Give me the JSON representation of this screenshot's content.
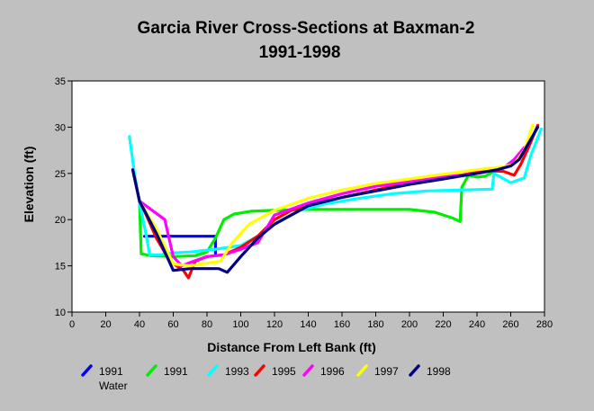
{
  "chart_data": {
    "type": "line",
    "title": "Garcia River Cross-Sections at Baxman-2",
    "subtitle": "1991-1998",
    "xlabel": "Distance From Left Bank (ft)",
    "ylabel": "Elevation (ft)",
    "xlim": [
      0,
      280
    ],
    "ylim": [
      10,
      35
    ],
    "xticks": [
      0,
      20,
      40,
      60,
      80,
      100,
      120,
      140,
      160,
      180,
      200,
      220,
      240,
      260,
      280
    ],
    "yticks": [
      10,
      15,
      20,
      25,
      30,
      35
    ],
    "grid": false,
    "legend_position": "bottom",
    "series": [
      {
        "name": "1991 Water",
        "color": "#0000ff",
        "points": [
          [
            43,
            18.2
          ],
          [
            85,
            18.2
          ],
          [
            85,
            16.3
          ]
        ]
      },
      {
        "name": "1991",
        "color": "#00ee00",
        "points": [
          [
            36,
            25.4
          ],
          [
            40,
            22
          ],
          [
            41,
            16.3
          ],
          [
            47,
            16.1
          ],
          [
            60,
            16
          ],
          [
            73,
            16.1
          ],
          [
            80,
            16.5
          ],
          [
            85,
            18
          ],
          [
            90,
            20
          ],
          [
            96,
            20.6
          ],
          [
            106,
            20.9
          ],
          [
            120,
            21
          ],
          [
            140,
            21.1
          ],
          [
            160,
            21.1
          ],
          [
            180,
            21.1
          ],
          [
            200,
            21.1
          ],
          [
            215,
            20.8
          ],
          [
            225,
            20.2
          ],
          [
            230,
            19.8
          ],
          [
            231,
            23.5
          ],
          [
            235,
            24.8
          ],
          [
            240,
            24.6
          ],
          [
            245,
            24.7
          ],
          [
            250,
            25.2
          ]
        ]
      },
      {
        "name": "1993",
        "color": "#00ffff",
        "points": [
          [
            34,
            29
          ],
          [
            37,
            25
          ],
          [
            40,
            21.8
          ],
          [
            44,
            18.3
          ],
          [
            46,
            16.2
          ],
          [
            52,
            16.2
          ],
          [
            60,
            16.4
          ],
          [
            70,
            16.5
          ],
          [
            85,
            16.8
          ],
          [
            100,
            17.2
          ],
          [
            110,
            18.2
          ],
          [
            120,
            19.5
          ],
          [
            135,
            21
          ],
          [
            150,
            21.7
          ],
          [
            170,
            22.3
          ],
          [
            190,
            22.8
          ],
          [
            210,
            23.1
          ],
          [
            230,
            23.2
          ],
          [
            249,
            23.3
          ],
          [
            250,
            25
          ],
          [
            260,
            24
          ],
          [
            268,
            24.5
          ],
          [
            272,
            27
          ],
          [
            278,
            29.8
          ]
        ]
      },
      {
        "name": "1995",
        "color": "#ff0000",
        "points": [
          [
            36,
            25.4
          ],
          [
            40,
            22
          ],
          [
            44,
            20.5
          ],
          [
            50,
            18
          ],
          [
            58,
            15.5
          ],
          [
            66,
            14.5
          ],
          [
            69,
            13.7
          ],
          [
            73,
            15.5
          ],
          [
            80,
            16
          ],
          [
            90,
            16.2
          ],
          [
            100,
            17
          ],
          [
            110,
            18.2
          ],
          [
            120,
            20
          ],
          [
            130,
            21
          ],
          [
            145,
            21.8
          ],
          [
            170,
            22.8
          ],
          [
            190,
            23.6
          ],
          [
            210,
            24.2
          ],
          [
            230,
            24.8
          ],
          [
            245,
            25.3
          ],
          [
            256,
            25.2
          ],
          [
            262,
            24.8
          ],
          [
            266,
            26
          ],
          [
            271,
            28
          ],
          [
            276,
            30.2
          ]
        ]
      },
      {
        "name": "1996",
        "color": "#ff00ff",
        "points": [
          [
            36,
            25.4
          ],
          [
            40,
            22
          ],
          [
            55,
            20
          ],
          [
            60,
            16
          ],
          [
            65,
            15
          ],
          [
            72,
            15.5
          ],
          [
            80,
            16
          ],
          [
            90,
            16.2
          ],
          [
            100,
            16.8
          ],
          [
            110,
            17.5
          ],
          [
            120,
            20.5
          ],
          [
            140,
            21.8
          ],
          [
            160,
            22.8
          ],
          [
            180,
            23.6
          ],
          [
            200,
            24.1
          ],
          [
            220,
            24.6
          ],
          [
            240,
            25
          ],
          [
            255,
            25.5
          ],
          [
            262,
            26.5
          ],
          [
            268,
            27.8
          ]
        ]
      },
      {
        "name": "1997",
        "color": "#ffff00",
        "points": [
          [
            36,
            25.4
          ],
          [
            40,
            22
          ],
          [
            50,
            19
          ],
          [
            60,
            15.2
          ],
          [
            70,
            15
          ],
          [
            80,
            15.3
          ],
          [
            88,
            15.5
          ],
          [
            95,
            17.5
          ],
          [
            105,
            19.5
          ],
          [
            120,
            21
          ],
          [
            140,
            22.3
          ],
          [
            160,
            23.2
          ],
          [
            180,
            23.9
          ],
          [
            200,
            24.4
          ],
          [
            220,
            24.9
          ],
          [
            240,
            25.4
          ],
          [
            255,
            25.7
          ],
          [
            262,
            26
          ],
          [
            268,
            27.5
          ],
          [
            273,
            30.2
          ]
        ]
      },
      {
        "name": "1998",
        "color": "#000080",
        "points": [
          [
            36,
            25.4
          ],
          [
            40,
            22
          ],
          [
            50,
            18.5
          ],
          [
            60,
            14.5
          ],
          [
            70,
            14.7
          ],
          [
            82,
            14.7
          ],
          [
            87,
            14.7
          ],
          [
            92,
            14.3
          ],
          [
            100,
            16
          ],
          [
            110,
            18
          ],
          [
            120,
            19.5
          ],
          [
            140,
            21.5
          ],
          [
            160,
            22.4
          ],
          [
            180,
            23.1
          ],
          [
            200,
            23.8
          ],
          [
            220,
            24.4
          ],
          [
            240,
            25
          ],
          [
            252,
            25.4
          ],
          [
            260,
            25.8
          ],
          [
            265,
            26.5
          ],
          [
            276,
            30
          ]
        ]
      }
    ]
  }
}
